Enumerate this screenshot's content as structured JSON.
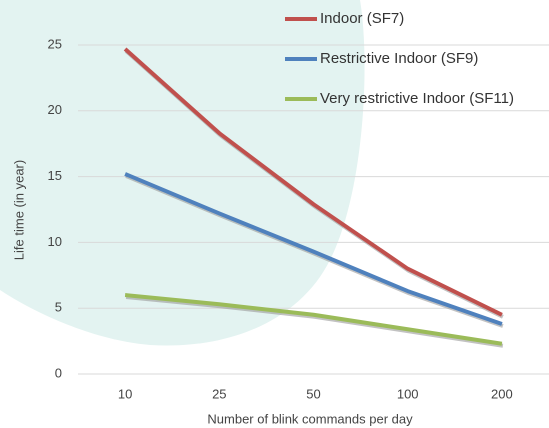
{
  "chart_data": {
    "type": "line",
    "x_label": "Number of blink commands per day",
    "y_label": "Life time (in year)",
    "categories": [
      "10",
      "25",
      "50",
      "100",
      "200"
    ],
    "series": [
      {
        "name": "Indoor (SF7)",
        "color": "#c0504d",
        "values": [
          24.7,
          18.3,
          12.9,
          8.0,
          4.5
        ]
      },
      {
        "name": "Restrictive Indoor (SF9)",
        "color": "#4f81bd",
        "values": [
          15.2,
          12.2,
          9.3,
          6.3,
          3.8
        ]
      },
      {
        "name": "Very restrictive Indoor (SF11)",
        "color": "#9bbb59",
        "values": [
          6.0,
          5.3,
          4.5,
          3.4,
          2.3
        ]
      }
    ],
    "ylim": [
      0,
      25
    ],
    "yticks": [
      0,
      5,
      10,
      15,
      20,
      25
    ],
    "grid": true,
    "legend": "top-right"
  }
}
